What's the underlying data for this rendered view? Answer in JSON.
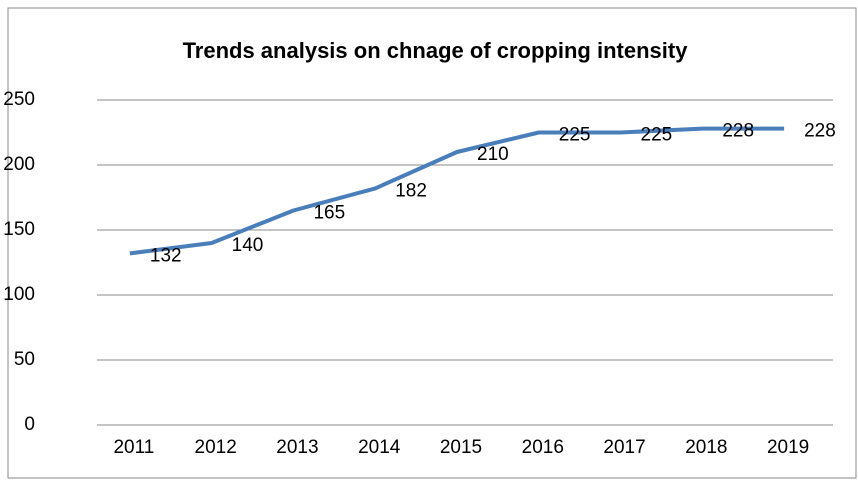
{
  "chart_data": {
    "type": "line",
    "title": "Trends analysis on chnage of cropping intensity",
    "categories": [
      "2011",
      "2012",
      "2013",
      "2014",
      "2015",
      "2016",
      "2017",
      "2018",
      "2019"
    ],
    "series": [
      {
        "name": "Cropping intensity",
        "color": "#4a7ebb",
        "values": [
          132,
          140,
          165,
          182,
          210,
          225,
          225,
          228,
          228
        ]
      }
    ],
    "ylim": [
      0,
      250
    ],
    "yticks": [
      0,
      50,
      100,
      150,
      200,
      250
    ],
    "grid": true,
    "data_labels": true
  }
}
